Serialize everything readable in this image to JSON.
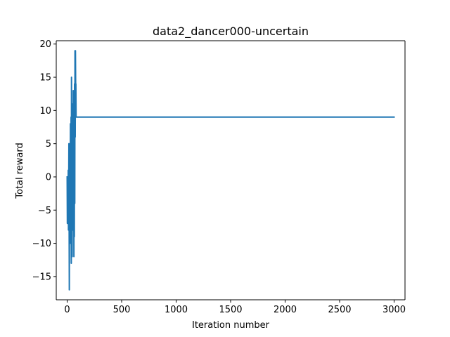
{
  "chart_data": {
    "type": "line",
    "title": "data2_dancer000-uncertain",
    "xlabel": "Iteration number",
    "ylabel": "Total reward",
    "xlim": [
      -100,
      3100
    ],
    "ylim": [
      -18.5,
      20.5
    ],
    "grid": false,
    "legend": "none",
    "x_ticks": [
      0,
      500,
      1000,
      1500,
      2000,
      2500,
      3000
    ],
    "y_ticks": [
      -15,
      -10,
      -5,
      0,
      5,
      10,
      15,
      20
    ],
    "x_tick_labels": [
      "0",
      "500",
      "1000",
      "1500",
      "2000",
      "2500",
      "3000"
    ],
    "y_tick_labels": [
      "−15",
      "−10",
      "−5",
      "0",
      "5",
      "10",
      "15",
      "20"
    ],
    "series": [
      {
        "color": "#1f77b4",
        "x": [
          0,
          2,
          4,
          6,
          8,
          10,
          12,
          14,
          16,
          18,
          20,
          22,
          24,
          26,
          28,
          30,
          32,
          34,
          36,
          38,
          40,
          42,
          44,
          46,
          48,
          50,
          52,
          54,
          56,
          58,
          60,
          62,
          64,
          66,
          68,
          70,
          72,
          74,
          76,
          78,
          80,
          82,
          84,
          86,
          88,
          90,
          92,
          94,
          96,
          98,
          100,
          3000
        ],
        "y": [
          0,
          -7,
          -2,
          0,
          -5,
          1,
          -8,
          -3,
          5,
          -6,
          -17,
          2,
          -9,
          5,
          -4,
          8,
          -10,
          -2,
          9,
          -13,
          15,
          -7,
          11,
          -12,
          6,
          -3,
          10,
          -8,
          13,
          -5,
          7,
          -12,
          11,
          -9,
          14,
          -4,
          19,
          6,
          19,
          14,
          14,
          9,
          9,
          9,
          9,
          9,
          9,
          9,
          9,
          9,
          9,
          9
        ]
      }
    ]
  }
}
